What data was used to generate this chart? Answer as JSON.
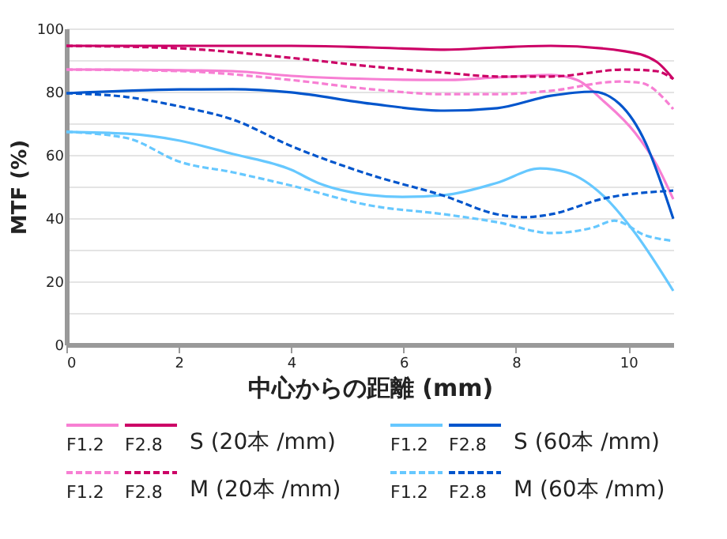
{
  "chart_data": {
    "type": "line",
    "xlabel": "中心からの距離 (mm)",
    "ylabel": "MTF (%)",
    "xlim": [
      0,
      10.8
    ],
    "xticks": [
      0,
      2,
      4,
      6,
      8,
      10
    ],
    "ylim": [
      0,
      100
    ],
    "yticks": [
      0,
      {
        "value": 10,
        "label": null
      },
      20,
      {
        "value": 30,
        "label": null
      },
      40,
      {
        "value": 50,
        "label": null
      },
      60,
      {
        "value": 70,
        "label": null
      },
      80,
      {
        "value": 90,
        "label": null
      },
      100
    ],
    "grid": "y",
    "legend": "bottom",
    "annotations": [
      "S (20本 /mm)",
      "M (20本 /mm)",
      "S (60本 /mm)",
      "M (60本 /mm)"
    ],
    "marker": "none",
    "series": [
      {
        "name": "F1.2",
        "color": "#f77fd3",
        "line_style": "solid",
        "x": [
          0,
          1.08,
          2.02,
          2.96,
          4,
          5.41,
          6.73,
          7.67,
          8.62,
          9.09,
          9.56,
          10.12,
          10.5,
          10.8
        ],
        "values": [
          87,
          87,
          86.8,
          86.5,
          85,
          84,
          83.7,
          84.5,
          85.3,
          83.7,
          77,
          67,
          57,
          46
        ]
      },
      {
        "name": "F2.8",
        "color": "#cc0066",
        "line_style": "solid",
        "x": [
          0,
          2.02,
          4,
          5.41,
          6.73,
          7.67,
          8.62,
          9.94,
          10.5,
          10.8
        ],
        "values": [
          94.5,
          94.5,
          94.5,
          94,
          93.3,
          94,
          94.5,
          92.8,
          89.5,
          84
        ]
      },
      {
        "name": "F1.2",
        "color": "#f77fd3",
        "line_style": "dashed",
        "x": [
          0,
          2.02,
          4,
          5.41,
          6.73,
          7.67,
          8.62,
          9.84,
          10.22,
          10.8
        ],
        "values": [
          87,
          86.5,
          83.7,
          80.8,
          79.2,
          79.2,
          80.3,
          83.2,
          82.8,
          74.5
        ]
      },
      {
        "name": "F2.8",
        "color": "#cc0066",
        "line_style": "dashed",
        "x": [
          0,
          2.02,
          4,
          5.41,
          6.73,
          7.67,
          8.62,
          9.94,
          10.5,
          10.8
        ],
        "values": [
          94.5,
          93.7,
          90.7,
          88,
          86,
          84.8,
          84.8,
          87,
          86.5,
          84
        ]
      },
      {
        "name": "F1.2",
        "color": "#66c8ff",
        "line_style": "solid",
        "x": [
          0,
          1.08,
          2.02,
          2.96,
          4,
          4.47,
          5.41,
          5.98,
          6.73,
          7.67,
          8.43,
          8.9,
          9.56,
          10.12,
          10.8
        ],
        "values": [
          67.3,
          66.7,
          64.5,
          60.3,
          55.3,
          51.2,
          47.3,
          46.7,
          47.3,
          51.2,
          55.7,
          54.5,
          47,
          35.3,
          17
        ]
      },
      {
        "name": "F2.8",
        "color": "#0055cc",
        "line_style": "solid",
        "x": [
          0,
          2.02,
          2.96,
          4,
          5.41,
          6.73,
          7.67,
          8.62,
          9.37,
          9.84,
          10.31,
          10.6,
          10.8
        ],
        "values": [
          79.5,
          80.7,
          80.8,
          79.8,
          76.2,
          74,
          74.8,
          78.7,
          80,
          76.2,
          63.7,
          50.3,
          39.8
        ]
      },
      {
        "name": "F1.2",
        "color": "#66c8ff",
        "line_style": "dashed",
        "x": [
          0,
          1.08,
          2.02,
          2.96,
          4,
          5.41,
          6.73,
          7.67,
          8.62,
          9.37,
          9.75,
          10.31,
          10.8
        ],
        "values": [
          67.3,
          65.3,
          57.8,
          54.5,
          50.3,
          44,
          41.2,
          38.7,
          35.3,
          37,
          39.2,
          34.5,
          32.8
        ]
      },
      {
        "name": "F2.8",
        "color": "#0055cc",
        "line_style": "dashed",
        "x": [
          0,
          1.08,
          2.02,
          2.96,
          4,
          5.41,
          6.73,
          7.67,
          8.14,
          8.62,
          9.56,
          10.8
        ],
        "values": [
          79.5,
          78.3,
          75.3,
          71.2,
          62.8,
          53.7,
          47,
          41.2,
          40.3,
          41.2,
          46.2,
          48.7
        ]
      }
    ]
  }
}
